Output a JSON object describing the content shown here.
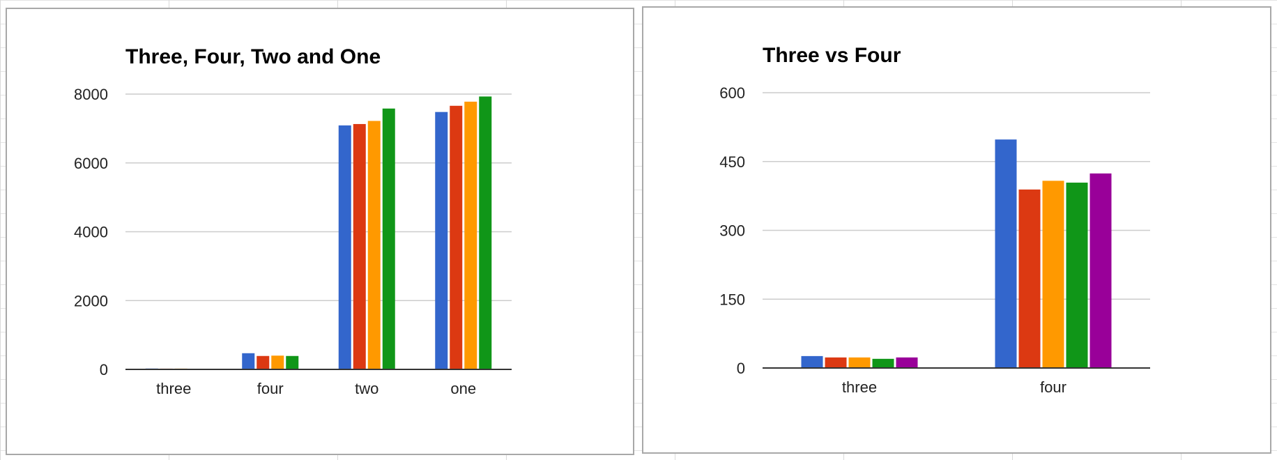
{
  "colors": [
    "#3366cc",
    "#dc3912",
    "#ff9900",
    "#109618",
    "#990099"
  ],
  "chart_data": [
    {
      "type": "bar",
      "title": "Three, Four, Two and One",
      "xlabel": "",
      "ylabel": "",
      "categories": [
        "three",
        "four",
        "two",
        "one"
      ],
      "ylim": [
        0,
        8000
      ],
      "yticks": [
        "0",
        "2000",
        "4000",
        "6000",
        "8000"
      ],
      "grid": true,
      "series": [
        {
          "values": [
            25,
            470,
            7090,
            7480
          ]
        },
        {
          "values": [
            22,
            390,
            7130,
            7660
          ]
        },
        {
          "values": [
            23,
            400,
            7220,
            7780
          ]
        },
        {
          "values": [
            20,
            390,
            7580,
            7930
          ]
        }
      ]
    },
    {
      "type": "bar",
      "title": "Three vs Four",
      "xlabel": "",
      "ylabel": "",
      "categories": [
        "three",
        "four"
      ],
      "ylim": [
        0,
        600
      ],
      "yticks": [
        "0",
        "150",
        "300",
        "450",
        "600"
      ],
      "grid": true,
      "series": [
        {
          "values": [
            26,
            498
          ]
        },
        {
          "values": [
            23,
            389
          ]
        },
        {
          "values": [
            23,
            408
          ]
        },
        {
          "values": [
            20,
            404
          ]
        },
        {
          "values": [
            23,
            424
          ]
        }
      ]
    }
  ]
}
